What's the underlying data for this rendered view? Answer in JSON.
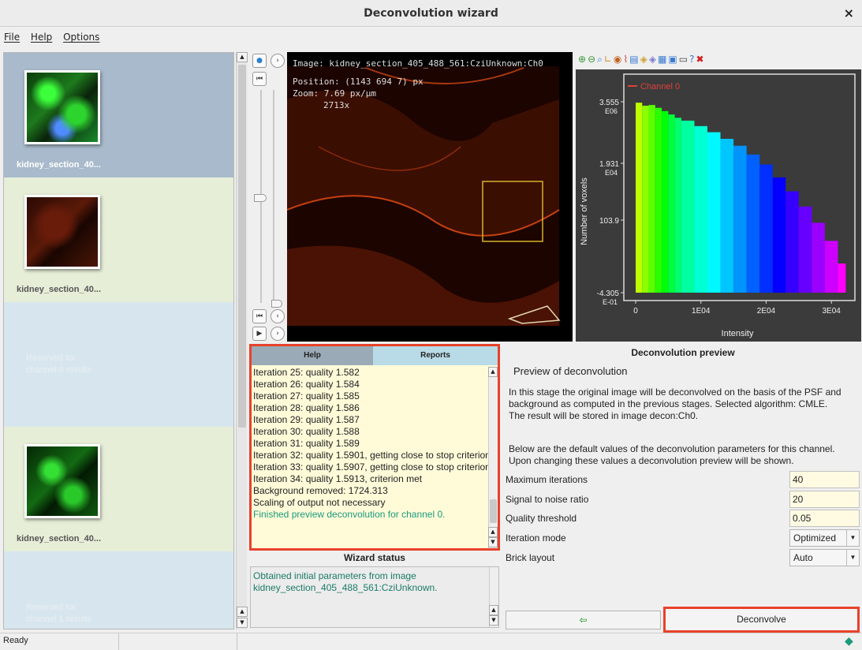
{
  "window": {
    "title": "Deconvolution wizard",
    "close": "×"
  },
  "menu": [
    "File",
    "Help",
    "Options"
  ],
  "images": [
    {
      "label": "kidney_section_40...",
      "selected": true
    },
    {
      "label": "kidney_section_40..."
    },
    {
      "reserved": "Reserved for\nchannel 0 results"
    },
    {
      "label": "kidney_section_40..."
    },
    {
      "reserved": "Reserved for\nchannel 1 results"
    }
  ],
  "viewer": {
    "image": "Image: kidney_section_405_488_561:CziUnknown:Ch0",
    "position": "Position: (1143 694 7) px",
    "zoom": "Zoom: 7.69 px/µm",
    "zoom_factor": "2713x"
  },
  "histogram": {
    "legend": "Channel 0",
    "ylabel": "Number of voxels",
    "xlabel": "Intensity",
    "yticks": [
      {
        "value": "3.555",
        "exp": "E06"
      },
      {
        "value": "1.931",
        "exp": "E04"
      },
      {
        "value": "103.9",
        "exp": ""
      },
      {
        "value": "-4.305",
        "exp": "E-01"
      }
    ],
    "xticks": [
      "0",
      "1E04",
      "2E04",
      "3E04"
    ],
    "accent": "#e0403a"
  },
  "chart_data": {
    "type": "bar",
    "title": "Channel 0",
    "xlabel": "Intensity",
    "ylabel": "Number of voxels",
    "x": [
      1000,
      2000,
      3000,
      4000,
      5000,
      6000,
      7000,
      8000,
      10000,
      12000,
      14000,
      16000,
      18000,
      20000,
      22000,
      24000,
      26000,
      28000,
      30000,
      32000
    ],
    "values": [
      3300000,
      2600000,
      2750000,
      2200000,
      1700000,
      1300000,
      1000000,
      800000,
      520000,
      320000,
      190000,
      110000,
      55000,
      25000,
      9000,
      3000,
      900,
      250,
      60,
      10
    ],
    "xlim": [
      0,
      33000
    ],
    "ylim": [
      -0.4305,
      3555000
    ],
    "yscale": "log"
  },
  "help_panel": {
    "tabs": [
      "Help",
      "Reports"
    ],
    "log": [
      "Iteration 25: quality 1.582",
      "Iteration 26: quality 1.584",
      "Iteration 27: quality 1.585",
      "Iteration 28: quality 1.586",
      "Iteration 29: quality 1.587",
      "Iteration 30: quality 1.588",
      "Iteration 31: quality 1.589",
      "Iteration 32: quality 1.5901, getting close to stop criterion",
      "Iteration 33: quality 1.5907, getting close to stop criterion",
      "Iteration 34: quality 1.5913, criterion met",
      "Background removed: 1724.313",
      "Scaling of output not necessary",
      "Finished preview deconvolution for channel 0."
    ]
  },
  "wizard_status": {
    "title": "Wizard status",
    "text": "Obtained initial parameters from image\nkidney_section_405_488_561:CziUnknown."
  },
  "preview": {
    "title": "Deconvolution preview",
    "subtitle": "Preview of deconvolution",
    "para1": "In this stage the original image will be deconvolved on the basis of the PSF and background as computed in the previous stages. Selected algorithm: CMLE.\nThe result will be stored in image decon:Ch0.",
    "para2": "Below are the default values of the deconvolution parameters for this channel. Upon changing these values a deconvolution preview will be shown.",
    "params": [
      {
        "label": "Maximum iterations",
        "value": "40"
      },
      {
        "label": "Signal to noise ratio",
        "value": "20"
      },
      {
        "label": "Quality threshold",
        "value": "0.05"
      },
      {
        "label": "Iteration mode",
        "value": "Optimized"
      },
      {
        "label": "Brick layout",
        "value": "Auto"
      }
    ],
    "back_label": "⇦",
    "deconvolve_label": "Deconvolve"
  },
  "status": "Ready"
}
